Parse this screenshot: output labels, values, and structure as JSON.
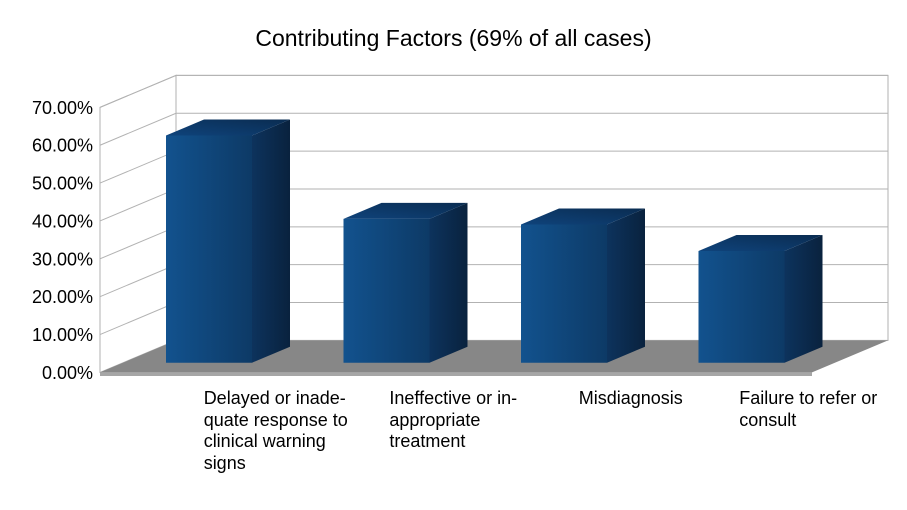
{
  "chart_data": {
    "type": "bar",
    "projection": "3d",
    "title": "Contributing Factors (69% of all cases)",
    "categories": [
      "Delayed or inadequate response to clinical warning signs",
      "Ineffective or inappropriate treatment",
      "Misdiagnosis",
      "Failure to refer or consult"
    ],
    "category_label_lines": [
      [
        "Delayed or inade-",
        "quate response to",
        "clinical warning",
        "signs"
      ],
      [
        "Ineffective or in-",
        "appropriate",
        "treatment"
      ],
      [
        "Misdiagnosis"
      ],
      [
        "Failure to refer or",
        "consult"
      ]
    ],
    "values": [
      60,
      38,
      36.5,
      29.5
    ],
    "unit": "percent",
    "ylim": [
      0,
      70
    ],
    "ytick_step": 10,
    "ytick_labels": [
      "0.00%",
      "10.00%",
      "20.00%",
      "30.00%",
      "40.00%",
      "50.00%",
      "60.00%",
      "70.00%"
    ],
    "grid": true,
    "legend": "none",
    "data_labels": "none",
    "colors": {
      "background": "#ffffff",
      "wall": "#ffffff",
      "gridline": "#b2b2b2",
      "floor": "#878787",
      "floor_edge": "#a6a6a6",
      "bar_front": "#10497f",
      "bar_top": "#0d3c6e",
      "bar_side": "#0c2f56",
      "text": "#000000"
    }
  }
}
